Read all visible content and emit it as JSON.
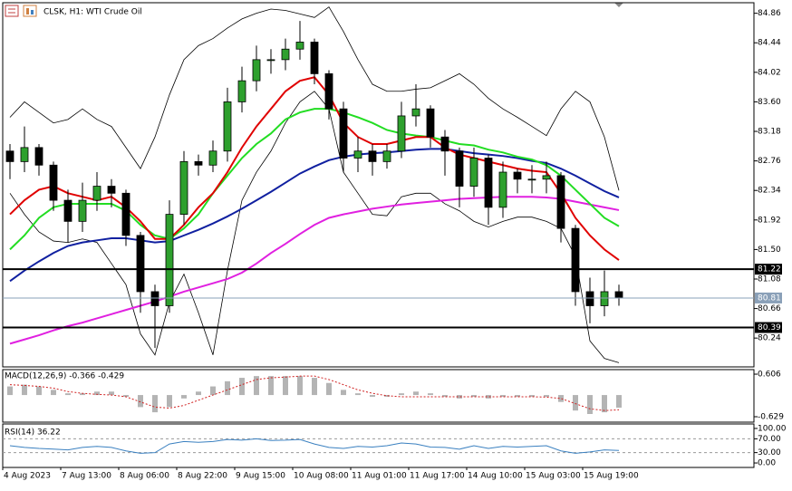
{
  "chart_data": [
    {
      "type": "candlestick",
      "title": "CLSK, H1: WTI Crude Oil",
      "categories": [
        "4 Aug 2023",
        null,
        null,
        null,
        "7 Aug 13:00",
        null,
        null,
        null,
        "8 Aug 06:00",
        null,
        null,
        null,
        "8 Aug 22:00",
        null,
        null,
        null,
        "9 Aug 15:00",
        null,
        null,
        null,
        "10 Aug 08:00",
        null,
        null,
        null,
        "11 Aug 01:00",
        null,
        null,
        null,
        "11 Aug 17:00",
        null,
        null,
        null,
        "14 Aug 10:00",
        null,
        null,
        null,
        "15 Aug 03:00",
        null,
        null,
        null,
        "15 Aug 19:00",
        null,
        null
      ],
      "open": [
        82.9,
        82.75,
        82.95,
        82.7,
        82.2,
        81.9,
        82.2,
        82.4,
        82.3,
        81.7,
        80.9,
        80.7,
        82.0,
        82.75,
        82.7,
        82.9,
        83.6,
        83.9,
        84.2,
        84.2,
        84.35,
        84.45,
        84.0,
        83.5,
        82.8,
        82.9,
        82.75,
        82.9,
        83.4,
        83.5,
        83.1,
        82.9,
        82.4,
        82.8,
        82.1,
        82.6,
        82.5,
        82.5,
        82.55,
        81.8,
        80.9,
        80.7,
        80.9
      ],
      "high": [
        83.0,
        83.25,
        83.0,
        82.75,
        82.35,
        82.45,
        82.6,
        82.5,
        82.35,
        81.75,
        81.0,
        82.2,
        82.9,
        82.85,
        83.05,
        83.8,
        84.1,
        84.4,
        84.35,
        84.5,
        84.75,
        84.5,
        84.05,
        83.6,
        83.1,
        83.0,
        83.0,
        83.6,
        83.85,
        83.55,
        83.2,
        82.95,
        82.95,
        82.85,
        82.75,
        82.65,
        82.7,
        82.75,
        82.6,
        81.85,
        81.1,
        81.2,
        81.0
      ],
      "low": [
        82.5,
        82.6,
        82.55,
        82.05,
        81.6,
        81.75,
        82.05,
        82.1,
        81.55,
        80.6,
        80.1,
        80.6,
        81.85,
        82.55,
        82.6,
        82.75,
        83.45,
        83.75,
        84.0,
        84.05,
        84.2,
        83.85,
        83.35,
        82.6,
        82.6,
        82.55,
        82.65,
        82.8,
        83.25,
        82.95,
        82.55,
        82.1,
        82.25,
        81.85,
        81.95,
        82.3,
        82.3,
        82.3,
        81.6,
        80.7,
        80.45,
        80.55,
        80.7
      ],
      "close": [
        82.75,
        82.95,
        82.7,
        82.2,
        81.9,
        82.2,
        82.4,
        82.3,
        81.7,
        80.9,
        80.7,
        82.0,
        82.75,
        82.7,
        82.9,
        83.6,
        83.9,
        84.2,
        84.2,
        84.35,
        84.45,
        84.0,
        83.5,
        82.8,
        82.9,
        82.75,
        82.9,
        83.4,
        83.5,
        83.1,
        82.9,
        82.4,
        82.8,
        82.1,
        82.6,
        82.5,
        82.5,
        82.55,
        81.8,
        80.9,
        80.7,
        80.9,
        80.81
      ],
      "up_color": "#2ea02e",
      "down_color": "#000000",
      "series": [
        {
          "color": "#000000",
          "values": [
            83.38,
            83.6,
            83.45,
            83.3,
            83.35,
            83.5,
            83.35,
            83.25,
            82.95,
            82.65,
            83.1,
            83.7,
            84.2,
            84.4,
            84.5,
            84.65,
            84.78,
            84.86,
            84.92,
            84.9,
            84.85,
            84.8,
            84.95,
            84.6,
            84.2,
            83.85,
            83.75,
            83.75,
            83.78,
            83.8,
            83.9,
            84.0,
            83.85,
            83.65,
            83.5,
            83.38,
            83.25,
            83.12,
            83.5,
            83.75,
            83.6,
            83.1,
            82.34
          ]
        },
        {
          "color": "#000000",
          "values": [
            82.3,
            82.0,
            81.75,
            81.62,
            81.6,
            81.65,
            81.6,
            81.3,
            81.0,
            80.3,
            80.0,
            80.75,
            81.15,
            80.6,
            80.0,
            81.2,
            82.2,
            82.6,
            82.9,
            83.3,
            83.6,
            83.75,
            83.5,
            82.6,
            82.3,
            82.0,
            81.98,
            82.25,
            82.3,
            82.3,
            82.15,
            82.05,
            81.9,
            81.82,
            81.9,
            81.96,
            81.96,
            81.9,
            81.8,
            81.4,
            80.2,
            79.95,
            79.89
          ]
        },
        {
          "color": "#e020e0",
          "values": [
            80.16,
            80.22,
            80.28,
            80.35,
            80.41,
            80.46,
            80.52,
            80.58,
            80.64,
            80.7,
            80.76,
            80.83,
            80.9,
            80.96,
            81.02,
            81.08,
            81.17,
            81.3,
            81.45,
            81.58,
            81.72,
            81.85,
            81.95,
            82.0,
            82.04,
            82.08,
            82.11,
            82.14,
            82.16,
            82.18,
            82.2,
            82.22,
            82.23,
            82.24,
            82.25,
            82.25,
            82.25,
            82.24,
            82.22,
            82.18,
            82.14,
            82.1,
            82.06
          ]
        },
        {
          "color": "#1020a0",
          "values": [
            81.05,
            81.2,
            81.33,
            81.45,
            81.55,
            81.6,
            81.63,
            81.66,
            81.66,
            81.63,
            81.6,
            81.62,
            81.7,
            81.78,
            81.87,
            81.97,
            82.08,
            82.2,
            82.32,
            82.45,
            82.58,
            82.68,
            82.77,
            82.82,
            82.85,
            82.87,
            82.88,
            82.9,
            82.92,
            82.93,
            82.93,
            82.9,
            82.87,
            82.85,
            82.83,
            82.8,
            82.76,
            82.73,
            82.65,
            82.55,
            82.44,
            82.33,
            82.24
          ]
        },
        {
          "color": "#22dd22",
          "values": [
            81.5,
            81.7,
            81.95,
            82.1,
            82.15,
            82.15,
            82.15,
            82.15,
            82.05,
            81.85,
            81.7,
            81.65,
            81.8,
            82.0,
            82.3,
            82.55,
            82.8,
            83.0,
            83.15,
            83.35,
            83.45,
            83.5,
            83.5,
            83.45,
            83.38,
            83.3,
            83.2,
            83.15,
            83.12,
            83.1,
            83.05,
            83.0,
            82.98,
            82.92,
            82.88,
            82.82,
            82.78,
            82.7,
            82.55,
            82.35,
            82.15,
            81.95,
            81.83
          ]
        },
        {
          "color": "#e00000",
          "values": [
            82.0,
            82.2,
            82.35,
            82.4,
            82.3,
            82.25,
            82.2,
            82.25,
            82.1,
            81.9,
            81.65,
            81.65,
            81.85,
            82.1,
            82.3,
            82.6,
            82.95,
            83.25,
            83.5,
            83.75,
            83.9,
            83.95,
            83.7,
            83.3,
            83.1,
            83.0,
            83.0,
            83.05,
            83.1,
            83.1,
            82.95,
            82.85,
            82.8,
            82.75,
            82.7,
            82.65,
            82.62,
            82.6,
            82.3,
            81.95,
            81.7,
            81.5,
            81.35
          ]
        }
      ],
      "ylim": [
        79.83,
        85.01
      ],
      "yticks": [
        84.86,
        84.44,
        84.02,
        {
          "value": 83.6,
          "label": "83.60"
        },
        83.18,
        82.76,
        82.34,
        81.92,
        {
          "value": 81.5,
          "label": "81.50"
        },
        81.08,
        80.66,
        80.24
      ],
      "levels": [
        81.22,
        80.39
      ],
      "level_color": "#000000",
      "current": 80.81,
      "current_color": "#8aa0b8"
    },
    {
      "type": "macd",
      "title": "MACD(12,26,9) -0.366 -0.429",
      "ylim": [
        -0.787,
        0.738
      ],
      "yticks": [
        0.606,
        -0.629
      ],
      "series": [
        {
          "color": "#b4b4b4",
          "values": [
            0.25,
            0.3,
            0.25,
            0.15,
            0.05,
            0.05,
            0.1,
            0.1,
            -0.05,
            -0.35,
            -0.5,
            -0.35,
            -0.1,
            0.1,
            0.25,
            0.4,
            0.5,
            0.55,
            0.55,
            0.55,
            0.55,
            0.5,
            0.35,
            0.15,
            0.05,
            -0.05,
            -0.05,
            0.05,
            0.1,
            0.05,
            -0.05,
            -0.1,
            -0.05,
            -0.1,
            -0.05,
            -0.05,
            -0.05,
            -0.05,
            -0.2,
            -0.45,
            -0.55,
            -0.5,
            -0.366
          ]
        },
        {
          "color": "#d02020",
          "values": [
            0.3,
            0.28,
            0.25,
            0.2,
            0.1,
            0.05,
            0.02,
            0.0,
            -0.05,
            -0.2,
            -0.35,
            -0.38,
            -0.3,
            -0.15,
            0.0,
            0.15,
            0.3,
            0.45,
            0.5,
            0.52,
            0.55,
            0.55,
            0.45,
            0.3,
            0.15,
            0.05,
            -0.02,
            -0.05,
            -0.05,
            -0.05,
            -0.05,
            -0.05,
            -0.05,
            -0.05,
            -0.05,
            -0.05,
            -0.05,
            -0.06,
            -0.1,
            -0.25,
            -0.4,
            -0.45,
            -0.429
          ]
        }
      ]
    },
    {
      "type": "line",
      "title": "RSI(14) 36.22",
      "ylim": [
        -13,
        113
      ],
      "yticks": [
        {
          "value": 100,
          "label": "100.00"
        },
        {
          "value": 70,
          "label": "70.00"
        },
        {
          "value": 30,
          "label": "30.00"
        },
        {
          "value": 0,
          "label": "0.00"
        }
      ],
      "levels": [
        70,
        30
      ],
      "series": [
        {
          "color": "#3a80c0",
          "values": [
            50,
            45,
            42,
            40,
            38,
            45,
            48,
            45,
            35,
            28,
            30,
            55,
            62,
            60,
            62,
            68,
            66,
            70,
            65,
            66,
            68,
            55,
            45,
            42,
            48,
            46,
            50,
            58,
            55,
            46,
            45,
            40,
            50,
            42,
            48,
            46,
            48,
            50,
            35,
            28,
            32,
            38,
            36.22
          ]
        }
      ]
    }
  ]
}
